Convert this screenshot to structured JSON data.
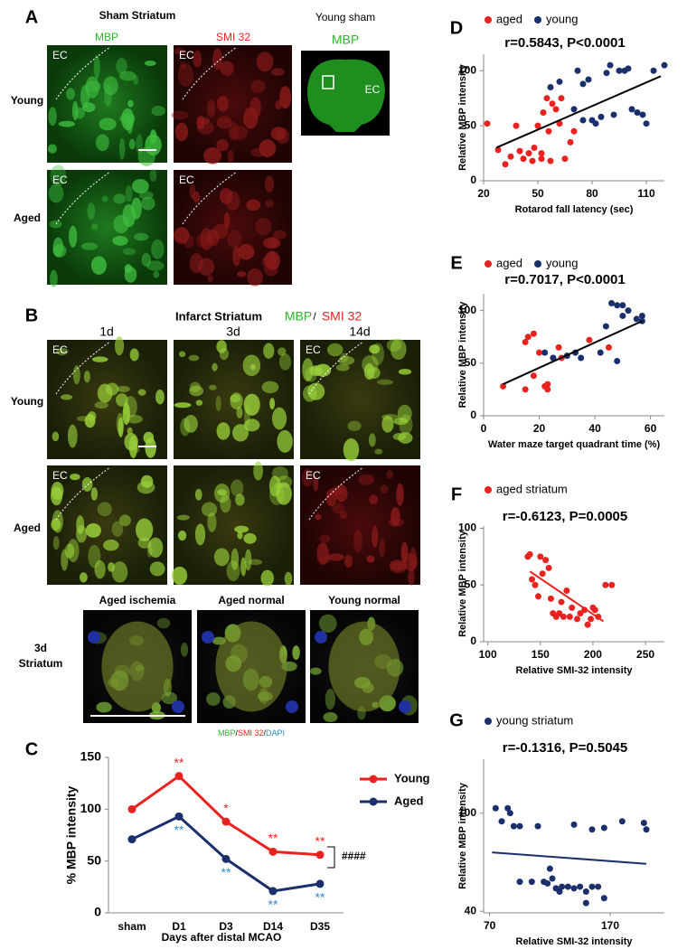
{
  "panels": {
    "A": {
      "label": "A",
      "title": "Sham Striatum",
      "columns": [
        "MBP",
        "SMI 32"
      ],
      "rows": [
        "Young",
        "Aged"
      ],
      "region": "EC",
      "inset_title": "Young sham",
      "inset_stain": "MBP",
      "inset_region": "EC"
    },
    "B": {
      "label": "B",
      "title": "Infarct Striatum",
      "stains": [
        "MBP",
        "SMI 32"
      ],
      "separator": "/",
      "columns": [
        "1d",
        "3d",
        "14d"
      ],
      "rows": [
        "Young",
        "Aged"
      ],
      "region": "EC",
      "sub_columns": [
        "Aged ischemia",
        "Aged normal",
        "Young normal"
      ],
      "sub_row": [
        "3d",
        "Striatum"
      ],
      "sub_legend": [
        "MBP",
        "SMI 32",
        "DAPI"
      ]
    }
  },
  "chart_data": [
    {
      "type": "line",
      "label": "C",
      "xlabel": "Days after distal MCAO",
      "ylabel": "% MBP intensity",
      "categories": [
        "sham",
        "D1",
        "D3",
        "D14",
        "D35"
      ],
      "ylim": [
        0,
        150
      ],
      "yticks": [
        0,
        50,
        100,
        150
      ],
      "series": [
        {
          "name": "Young",
          "color": "#e8231f",
          "values": [
            100,
            132,
            88,
            59,
            56
          ],
          "annotations": [
            null,
            "**",
            "*",
            "**",
            "**"
          ],
          "annotation_color": "#e8231f"
        },
        {
          "name": "Aged",
          "color": "#1a2f6b",
          "values": [
            71,
            93,
            52,
            21,
            28
          ],
          "annotations": [
            null,
            "**",
            "**",
            "**",
            "**"
          ],
          "annotation_color": "#2e8bc9"
        }
      ],
      "group_annotation": "####"
    },
    {
      "type": "scatter",
      "label": "D",
      "stat": "r=0.5843, P<0.0001",
      "xlabel": "Rotarod fall latency (sec)",
      "ylabel": "Relative MBP intensity",
      "xlim": [
        20,
        120
      ],
      "xticks": [
        20,
        50,
        80,
        110
      ],
      "ylim": [
        0,
        115
      ],
      "yticks": [
        0,
        50,
        100
      ],
      "series": [
        {
          "name": "aged",
          "color": "#e8231f",
          "x": [
            22,
            28,
            32,
            35,
            38,
            40,
            42,
            45,
            47,
            48,
            50,
            52,
            53,
            55,
            56,
            58,
            60,
            62,
            63,
            65,
            68,
            70,
            52,
            57
          ],
          "y": [
            52,
            28,
            15,
            22,
            50,
            27,
            20,
            25,
            18,
            30,
            50,
            25,
            62,
            75,
            45,
            70,
            65,
            52,
            75,
            20,
            35,
            45,
            20,
            18
          ]
        },
        {
          "name": "young",
          "color": "#1a2f6b",
          "x": [
            57,
            62,
            72,
            75,
            78,
            80,
            82,
            85,
            88,
            90,
            92,
            95,
            98,
            100,
            102,
            105,
            108,
            110,
            114,
            120,
            75,
            70
          ],
          "y": [
            85,
            90,
            100,
            88,
            92,
            55,
            52,
            58,
            98,
            105,
            60,
            100,
            100,
            102,
            65,
            62,
            60,
            52,
            100,
            105,
            55,
            65
          ]
        }
      ],
      "trendline": {
        "color": "#000000",
        "x": [
          27,
          118
        ],
        "y": [
          30,
          95
        ]
      }
    },
    {
      "type": "scatter",
      "label": "E",
      "stat": "r=0.7017, P<0.0001",
      "xlabel": "Water maze target quadrant time (%)",
      "ylabel": "Relative MBP intensity",
      "xlim": [
        0,
        65
      ],
      "xticks": [
        0,
        20,
        40,
        60
      ],
      "ylim": [
        0,
        116
      ],
      "yticks": [
        0,
        50,
        100
      ],
      "series": [
        {
          "name": "aged",
          "color": "#e8231f",
          "x": [
            7,
            15,
            16,
            18,
            18,
            20,
            22,
            23,
            23,
            25,
            27,
            28,
            38,
            45,
            15
          ],
          "y": [
            28,
            25,
            75,
            78,
            38,
            60,
            28,
            25,
            30,
            55,
            65,
            55,
            72,
            65,
            70
          ]
        },
        {
          "name": "young",
          "color": "#1a2f6b",
          "x": [
            22,
            25,
            30,
            33,
            35,
            42,
            44,
            46,
            48,
            50,
            50,
            52,
            55,
            57,
            57,
            48
          ],
          "y": [
            60,
            55,
            57,
            60,
            55,
            60,
            85,
            107,
            105,
            105,
            95,
            100,
            92,
            95,
            90,
            52
          ]
        }
      ],
      "trendline": {
        "color": "#000000",
        "x": [
          7,
          57
        ],
        "y": [
          30,
          90
        ]
      }
    },
    {
      "type": "scatter",
      "label": "F",
      "stat": "r=-0.6123, P=0.0005",
      "xlabel": "Relative SMI-32 intensity",
      "ylabel": "Relative MBP intensity",
      "xlim": [
        96,
        268
      ],
      "xticks": [
        100,
        150,
        200,
        250
      ],
      "ylim": [
        0,
        102
      ],
      "yticks": [
        0,
        50,
        100
      ],
      "series": [
        {
          "name": "aged striatum",
          "color": "#e8231f",
          "x": [
            138,
            140,
            142,
            145,
            148,
            150,
            152,
            155,
            158,
            160,
            162,
            165,
            168,
            170,
            172,
            175,
            178,
            180,
            185,
            188,
            192,
            195,
            198,
            200,
            205,
            212,
            218,
            202
          ],
          "y": [
            75,
            77,
            55,
            50,
            40,
            75,
            60,
            72,
            65,
            38,
            25,
            22,
            25,
            35,
            22,
            45,
            22,
            30,
            20,
            25,
            28,
            15,
            20,
            30,
            22,
            50,
            50,
            28
          ]
        }
      ],
      "trendline": {
        "color": "#e8231f",
        "x": [
          140,
          210
        ],
        "y": [
          62,
          18
        ]
      }
    },
    {
      "type": "scatter",
      "label": "G",
      "stat": "r=-0.1316, P=0.5045",
      "xlabel": "Relative SMI-32 intensity",
      "ylabel": "Relative MBP intensity",
      "xlim": [
        65,
        215
      ],
      "xticks": [
        70,
        170
      ],
      "ylim": [
        39,
        133
      ],
      "yticks": [
        40,
        100
      ],
      "series": [
        {
          "name": "young striatum",
          "color": "#1a2f6b",
          "x": [
            75,
            80,
            85,
            87,
            90,
            95,
            110,
            95,
            105,
            115,
            118,
            120,
            122,
            125,
            128,
            130,
            135,
            140,
            145,
            150,
            150,
            155,
            160,
            140,
            155,
            165,
            180,
            198,
            200,
            165
          ],
          "y": [
            103,
            95,
            103,
            100,
            92,
            92,
            92,
            58,
            58,
            58,
            57,
            66,
            60,
            54,
            52,
            55,
            55,
            54,
            55,
            52,
            45,
            55,
            55,
            93,
            90,
            91,
            95,
            94,
            90,
            48
          ]
        }
      ],
      "trendline": {
        "color": "#1a2f6b",
        "x": [
          72,
          200
        ],
        "y": [
          76,
          69
        ]
      }
    }
  ]
}
